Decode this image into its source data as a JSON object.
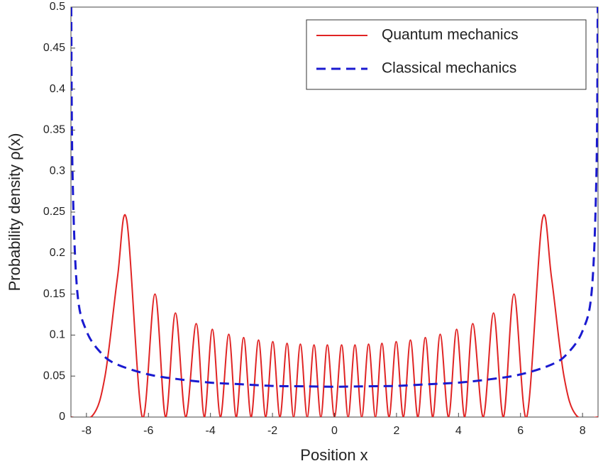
{
  "chart_data": {
    "type": "line",
    "xlabel": "Position x",
    "ylabel": "Probability density  ρ(x)",
    "xlim": [
      -8.5,
      8.5
    ],
    "ylim": [
      0,
      0.5
    ],
    "xticks": [
      -8,
      -6,
      -4,
      -2,
      0,
      2,
      4,
      6,
      8
    ],
    "yticks": [
      0,
      0.05,
      0.1,
      0.15,
      0.2,
      0.25,
      0.3,
      0.35,
      0.4,
      0.45,
      0.5
    ],
    "legend": "upper right",
    "series": [
      {
        "name": "Quantum mechanics",
        "color": "#e02424",
        "linestyle": "solid",
        "x": [
          -8.5,
          -7.8,
          -7.4,
          -7.0,
          -6.7,
          -6.2,
          -5.79,
          -5.45,
          -5.13,
          -4.8,
          -4.46,
          -4.2,
          -3.94,
          -3.68,
          -3.41,
          -3.17,
          -2.93,
          -2.69,
          -2.45,
          -2.22,
          -1.99,
          -1.76,
          -1.53,
          -1.32,
          -1.1,
          -0.88,
          -0.66,
          -0.44,
          -0.23,
          0,
          0.23,
          0.44,
          0.66,
          0.88,
          1.1,
          1.32,
          1.53,
          1.76,
          1.99,
          2.22,
          2.45,
          2.69,
          2.93,
          3.17,
          3.41,
          3.68,
          3.94,
          4.2,
          4.46,
          4.8,
          5.13,
          5.45,
          5.79,
          6.2,
          6.7,
          7.0,
          7.4,
          7.8,
          8.5
        ],
        "values": [
          0,
          0.002,
          0.05,
          0.17,
          0.24,
          0,
          0.15,
          0,
          0.127,
          0,
          0.114,
          0,
          0.107,
          0,
          0.101,
          0,
          0.097,
          0,
          0.094,
          0,
          0.092,
          0,
          0.09,
          0,
          0.089,
          0,
          0.088,
          0,
          0.088,
          0,
          0.088,
          0,
          0.088,
          0,
          0.089,
          0,
          0.09,
          0,
          0.092,
          0,
          0.094,
          0,
          0.097,
          0,
          0.101,
          0,
          0.107,
          0,
          0.114,
          0,
          0.127,
          0,
          0.15,
          0,
          0.24,
          0.17,
          0.05,
          0.002,
          0
        ]
      },
      {
        "name": "Classical mechanics",
        "color": "#1a1ad0",
        "linestyle": "dashed",
        "x": [
          -8.49,
          -8.45,
          -8.3,
          -8.0,
          -7.5,
          -7.0,
          -6.0,
          -5.0,
          -4.0,
          -3.0,
          -2.0,
          -1.0,
          0,
          1.0,
          2.0,
          3.0,
          4.0,
          5.0,
          6.0,
          7.0,
          7.5,
          8.0,
          8.3,
          8.45,
          8.49
        ],
        "values": [
          0.5,
          0.3,
          0.155,
          0.105,
          0.077,
          0.064,
          0.052,
          0.046,
          0.042,
          0.04,
          0.038,
          0.0375,
          0.037,
          0.0375,
          0.038,
          0.04,
          0.042,
          0.046,
          0.052,
          0.064,
          0.077,
          0.105,
          0.155,
          0.3,
          0.5
        ]
      }
    ]
  }
}
